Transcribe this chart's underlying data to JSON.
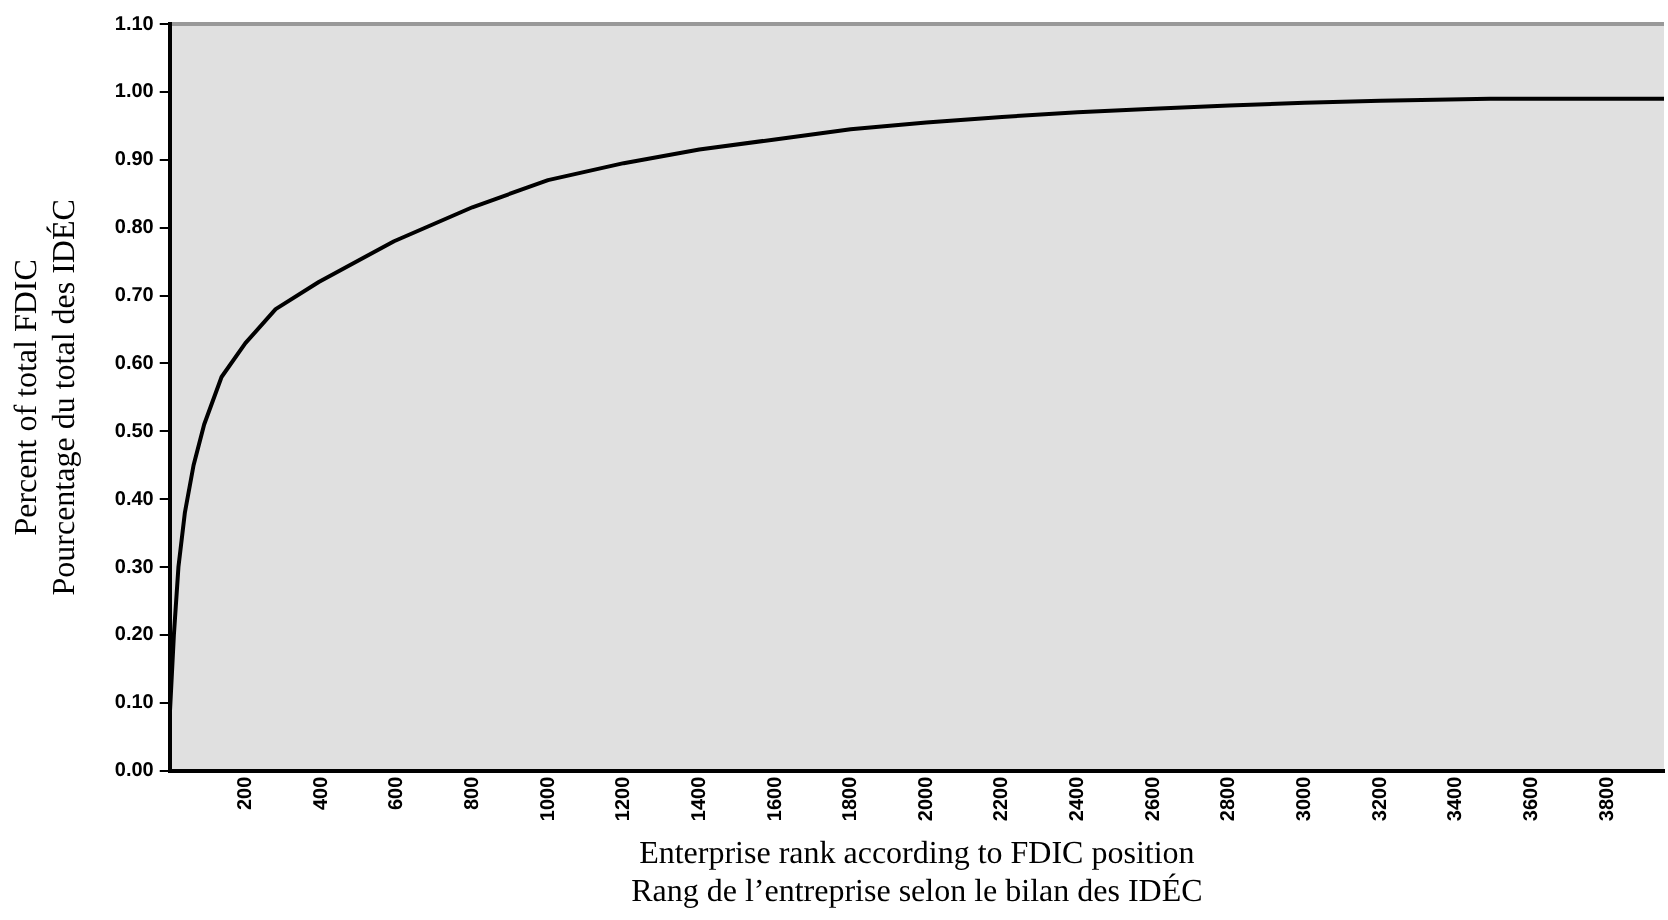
{
  "chart_data": {
    "type": "line",
    "xlabel": "Enterprise rank according to FDIC position\nRang de l’entreprise selon le bilan des IDÉC",
    "ylabel": "Percent of total FDIC\nPourcentage du total des IDÉC",
    "series": [
      {
        "color": "#000000",
        "x": [
          0,
          11,
          23,
          40,
          63,
          91,
          137,
          200,
          280,
          394,
          593,
          800,
          1000,
          1200,
          1400,
          1600,
          1800,
          2000,
          2200,
          2400,
          2600,
          2800,
          3000,
          3200,
          3490,
          3950
        ],
        "values": [
          0.08,
          0.2,
          0.3,
          0.38,
          0.45,
          0.51,
          0.58,
          0.63,
          0.68,
          0.72,
          0.78,
          0.83,
          0.87,
          0.895,
          0.915,
          0.93,
          0.945,
          0.955,
          0.963,
          0.97,
          0.975,
          0.98,
          0.984,
          0.987,
          0.99,
          0.99
        ]
      }
    ],
    "xlim": [
      0,
      3950
    ],
    "xticks": [
      200,
      400,
      600,
      800,
      1000,
      1200,
      1400,
      1600,
      1800,
      2000,
      2200,
      2400,
      2600,
      2800,
      3000,
      3200,
      3400,
      3600,
      3800
    ],
    "ylim": [
      0,
      1.1
    ],
    "yticks": [
      {
        "value": 0,
        "label": "0.00"
      },
      {
        "value": 0.1,
        "label": "0.10"
      },
      {
        "value": 0.2,
        "label": "0.20"
      },
      {
        "value": 0.3,
        "label": "0.30"
      },
      {
        "value": 0.4,
        "label": "0.40"
      },
      {
        "value": 0.5,
        "label": "0.50"
      },
      {
        "value": 0.6,
        "label": "0.60"
      },
      {
        "value": 0.7,
        "label": "0.70"
      },
      {
        "value": 0.8,
        "label": "0.80"
      },
      {
        "value": 0.9,
        "label": "0.90"
      },
      {
        "value": 1,
        "label": "1.00"
      },
      {
        "value": 1.1,
        "label": "1.10"
      }
    ],
    "grid": false,
    "legend": false,
    "marker": "none"
  }
}
